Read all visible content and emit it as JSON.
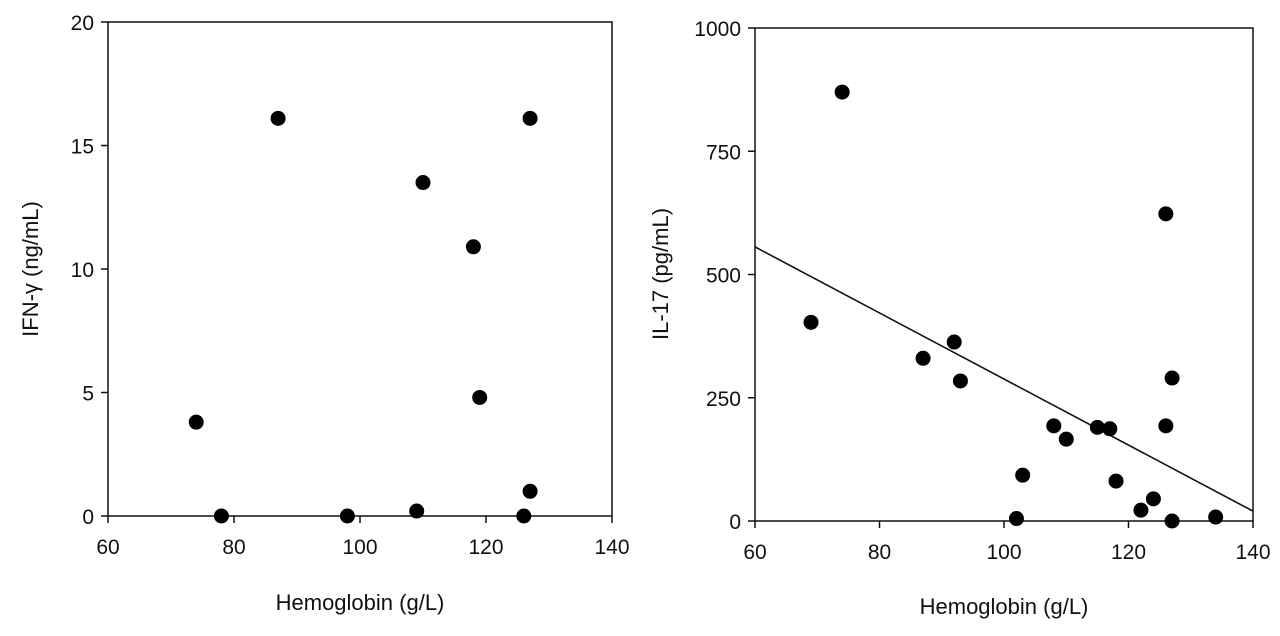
{
  "chart_data": [
    {
      "type": "scatter",
      "xlabel": "Hemoglobin (g/L)",
      "ylabel": "IFN-γ (ng/mL)",
      "xlim": [
        60,
        140
      ],
      "ylim": [
        0,
        20
      ],
      "xticks": [
        "60",
        "80",
        "100",
        "120",
        "140"
      ],
      "yticks": [
        "0",
        "5",
        "10",
        "15",
        "20"
      ],
      "grid": false,
      "points": [
        {
          "x": 74,
          "y": 3.8
        },
        {
          "x": 78,
          "y": 0
        },
        {
          "x": 87,
          "y": 16.1
        },
        {
          "x": 98,
          "y": 0
        },
        {
          "x": 109,
          "y": 0.2
        },
        {
          "x": 110,
          "y": 13.5
        },
        {
          "x": 118,
          "y": 10.9
        },
        {
          "x": 119,
          "y": 4.8
        },
        {
          "x": 126,
          "y": 0
        },
        {
          "x": 127,
          "y": 1.0
        },
        {
          "x": 127,
          "y": 16.1
        }
      ]
    },
    {
      "type": "scatter",
      "xlabel": "Hemoglobin (g/L)",
      "ylabel": "IL-17 (pg/mL)",
      "xlim": [
        60,
        140
      ],
      "ylim": [
        0,
        1000
      ],
      "xticks": [
        "60",
        "80",
        "100",
        "120",
        "140"
      ],
      "yticks": [
        "0",
        "250",
        "500",
        "750",
        "1000"
      ],
      "grid": false,
      "points": [
        {
          "x": 69,
          "y": 403
        },
        {
          "x": 74,
          "y": 870
        },
        {
          "x": 87,
          "y": 330
        },
        {
          "x": 92,
          "y": 363
        },
        {
          "x": 93,
          "y": 284
        },
        {
          "x": 102,
          "y": 5
        },
        {
          "x": 103,
          "y": 93
        },
        {
          "x": 108,
          "y": 193
        },
        {
          "x": 110,
          "y": 166
        },
        {
          "x": 115,
          "y": 190
        },
        {
          "x": 117,
          "y": 187
        },
        {
          "x": 118,
          "y": 81
        },
        {
          "x": 122,
          "y": 22
        },
        {
          "x": 124,
          "y": 45
        },
        {
          "x": 126,
          "y": 623
        },
        {
          "x": 126,
          "y": 193
        },
        {
          "x": 127,
          "y": 290
        },
        {
          "x": 127,
          "y": 0
        },
        {
          "x": 134,
          "y": 8
        }
      ],
      "trendline": {
        "x": [
          60,
          140
        ],
        "y": [
          556,
          20
        ]
      }
    }
  ]
}
